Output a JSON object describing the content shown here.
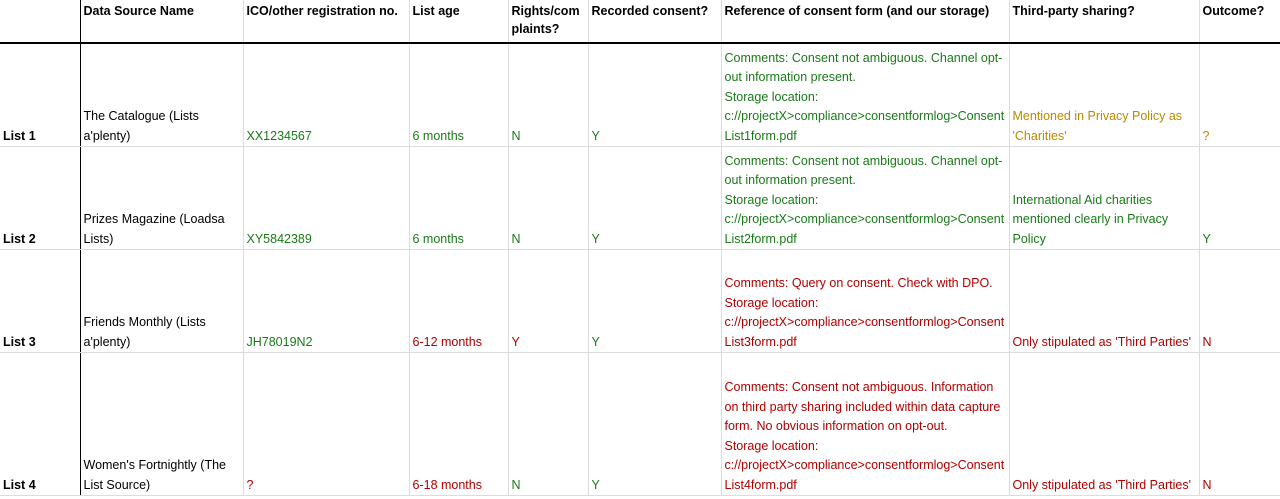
{
  "colors": {
    "green": "#1a7a1a",
    "red": "#b00000",
    "amber": "#b88a00"
  },
  "headers": [
    "",
    "Data Source Name",
    "ICO/other registration no.",
    "List age",
    "Rights/com plaints?",
    "Recorded consent?",
    "Reference of consent form (and our storage)",
    "Third-party sharing?",
    "Outcome?"
  ],
  "rows": [
    {
      "label": "List 1",
      "source": "The Catalogue (Lists a'plenty)",
      "registration": "XX1234567",
      "age": "6 months",
      "rights": "N",
      "consent": "Y",
      "reference": "Comments: Consent not ambiguous. Channel opt-out information present.\nStorage location: c://projectX>compliance>consentformlog>ConsentList1form.pdf",
      "sharing": "Mentioned in Privacy Policy as 'Charities'",
      "outcome": "?"
    },
    {
      "label": "List 2",
      "source": "Prizes Magazine (Loadsa Lists)",
      "registration": "XY5842389",
      "age": "6 months",
      "rights": "N",
      "consent": "Y",
      "reference": "Comments: Consent not ambiguous. Channel opt-out information present.\nStorage location: c://projectX>compliance>consentformlog>ConsentList2form.pdf",
      "sharing": "International Aid charities mentioned clearly in Privacy Policy",
      "outcome": "Y"
    },
    {
      "label": "List 3",
      "source": "Friends Monthly (Lists a'plenty)",
      "registration": "JH78019N2",
      "age": "6-12 months",
      "rights": "Y",
      "consent": "Y",
      "reference": "Comments: Query on consent. Check with DPO.\nStorage location: c://projectX>compliance>consentformlog>ConsentList3form.pdf",
      "sharing": "Only stipulated as 'Third Parties'",
      "outcome": "N"
    },
    {
      "label": "List 4",
      "source": "Women's Fortnightly (The List Source)",
      "registration": "?",
      "age": "6-18 months",
      "rights": "N",
      "consent": "Y",
      "reference": "Comments: Consent not ambiguous. Information on third party sharing included within data capture form. No obvious information on opt-out.\nStorage location: c://projectX>compliance>consentformlog>ConsentList4form.pdf",
      "sharing": "Only stipulated as 'Third Parties'",
      "outcome": "N"
    }
  ]
}
